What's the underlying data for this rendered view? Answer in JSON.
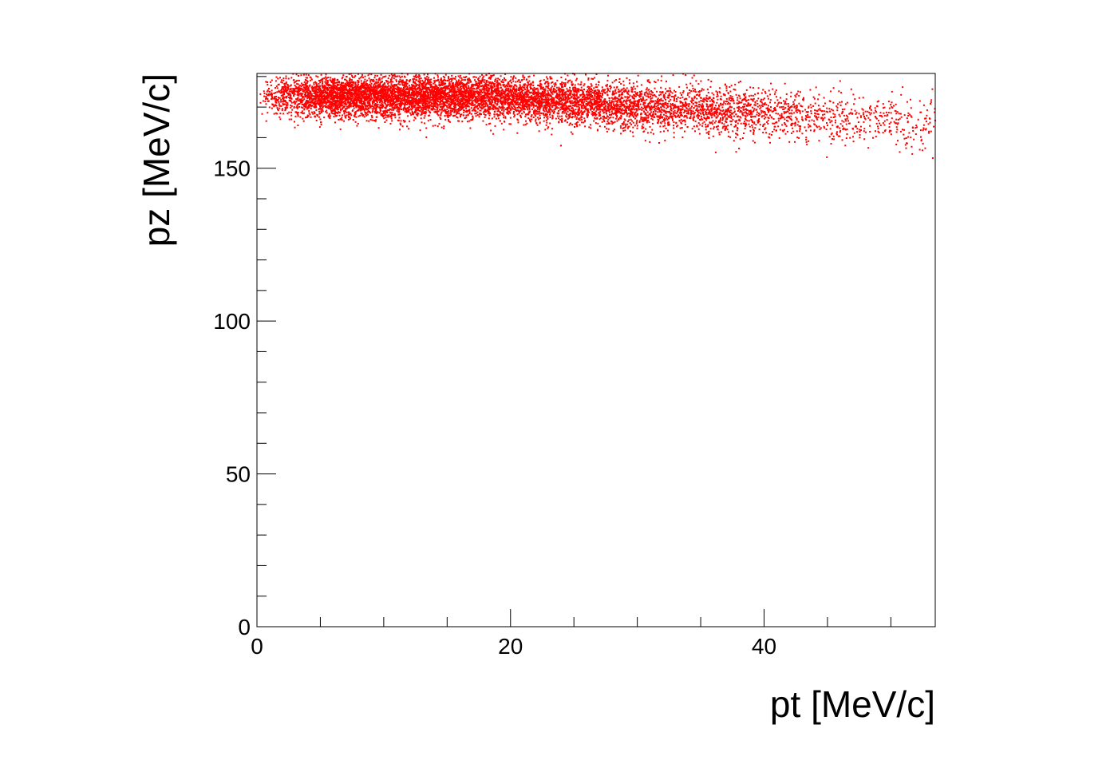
{
  "chart_data": {
    "type": "scatter",
    "title": "",
    "xlabel": "pt [MeV/c]",
    "ylabel": "pz [MeV/c]",
    "xlim": [
      0,
      53.5
    ],
    "ylim": [
      0,
      181
    ],
    "x_ticks": [
      0,
      20,
      40
    ],
    "y_ticks": [
      0,
      50,
      100,
      150
    ],
    "grid": false,
    "legend": "none",
    "marker_color": "#ff0000",
    "series": [
      {
        "points": [
          [
            0.5,
            172
          ],
          [
            1,
            175
          ],
          [
            1.5,
            168
          ],
          [
            2,
            178
          ],
          [
            3,
            171
          ],
          [
            4,
            176
          ],
          [
            5,
            166
          ],
          [
            6,
            173
          ],
          [
            7,
            179
          ],
          [
            8,
            170
          ],
          [
            9,
            174
          ],
          [
            10,
            168
          ],
          [
            11,
            177
          ],
          [
            12,
            172
          ],
          [
            13,
            165
          ],
          [
            14,
            175
          ],
          [
            15,
            170
          ],
          [
            16,
            178
          ],
          [
            17,
            167
          ],
          [
            18,
            173
          ],
          [
            19,
            176
          ],
          [
            20,
            169
          ],
          [
            21,
            174
          ],
          [
            22,
            166
          ],
          [
            23,
            177
          ],
          [
            24,
            171
          ],
          [
            25,
            168
          ],
          [
            26,
            175
          ],
          [
            27,
            170
          ],
          [
            28,
            173
          ],
          [
            29,
            166
          ],
          [
            30,
            172
          ],
          [
            31,
            169
          ],
          [
            32,
            175
          ],
          [
            33,
            167
          ],
          [
            34,
            171
          ],
          [
            35,
            168
          ],
          [
            36,
            173
          ],
          [
            37,
            166
          ],
          [
            38,
            170
          ],
          [
            39,
            167
          ],
          [
            40,
            171
          ],
          [
            41,
            165
          ],
          [
            42,
            169
          ],
          [
            43,
            166
          ],
          [
            44,
            168
          ],
          [
            45,
            164
          ],
          [
            46,
            167
          ],
          [
            47,
            163
          ],
          [
            48,
            166
          ],
          [
            49,
            162
          ],
          [
            50,
            165
          ],
          [
            51,
            161
          ],
          [
            52,
            164
          ],
          [
            53,
            162
          ]
        ]
      }
    ]
  }
}
